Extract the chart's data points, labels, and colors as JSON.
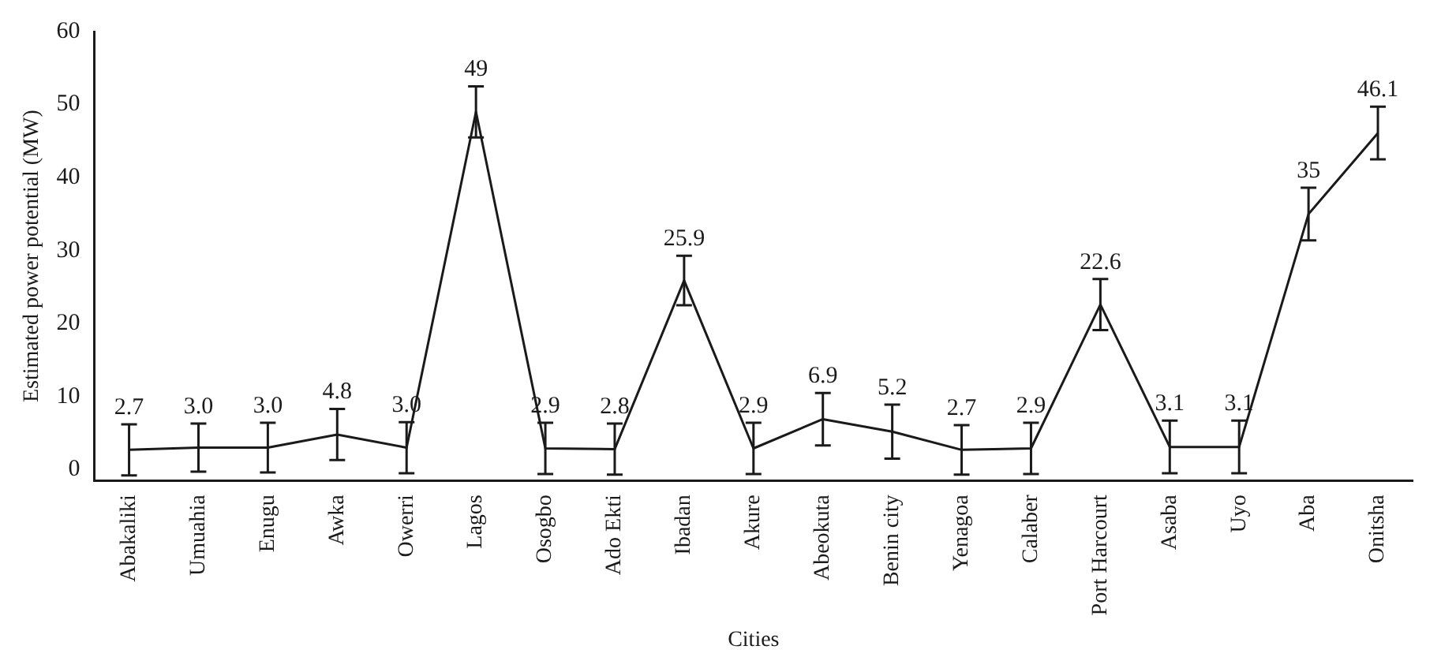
{
  "chart_data": {
    "type": "line",
    "xlabel": "Cities",
    "ylabel": "Estimated power potential (MW)",
    "categories": [
      "Abakaliki",
      "Umuahia",
      "Enugu",
      "Awka",
      "Owerri",
      "Lagos",
      "Osogbo",
      "Ado Ekti",
      "Ibadan",
      "Akure",
      "Abeokuta",
      "Benin city",
      "Yenagoa",
      "Calaber",
      "Port Harcourt",
      "Asaba",
      "Uyo",
      "Aba",
      "Onitsha"
    ],
    "series": [
      {
        "color": "#1a1a1a",
        "values": [
          2.7,
          3.0,
          3.0,
          4.8,
          3.0,
          49,
          2.9,
          2.8,
          25.9,
          2.9,
          6.9,
          5.2,
          2.7,
          2.9,
          22.6,
          3.1,
          3.1,
          35,
          46.1
        ],
        "value_labels": [
          "2.7",
          "3.0",
          "3.0",
          "4.8",
          "3.0",
          "49",
          "2.9",
          "2.8",
          "25.9",
          "2.9",
          "6.9",
          "5.2",
          "2.7",
          "2.9",
          "22.6",
          "3.1",
          "3.1",
          "35",
          "46.1"
        ],
        "errors": [
          3.5,
          3.3,
          3.4,
          3.5,
          3.5,
          3.5,
          3.5,
          3.5,
          3.4,
          3.5,
          3.6,
          3.7,
          3.4,
          3.5,
          3.5,
          3.6,
          3.6,
          3.6,
          3.6
        ]
      }
    ],
    "ylim": [
      -1.5,
      60
    ],
    "yticks": [
      0,
      10,
      20,
      30,
      40,
      50,
      60
    ],
    "grid": false,
    "legend": false,
    "marker": "none",
    "line_style": "solid"
  }
}
